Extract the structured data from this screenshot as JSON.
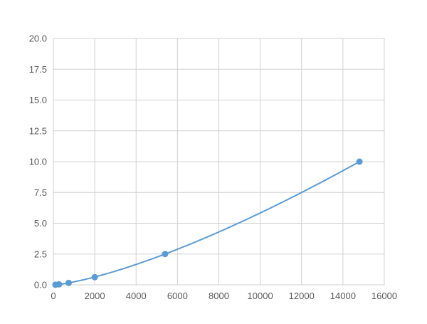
{
  "chart_data": {
    "type": "scatter",
    "title": "",
    "xlabel": "",
    "ylabel": "",
    "xlim": [
      0,
      16000
    ],
    "ylim": [
      0,
      20
    ],
    "x_ticks": [
      "0",
      "2000",
      "4000",
      "6000",
      "8000",
      "10000",
      "12000",
      "14000",
      "16000"
    ],
    "y_ticks": [
      "0.0",
      "2.5",
      "5.0",
      "7.5",
      "10.0",
      "12.5",
      "15.0",
      "17.5",
      "20.0"
    ],
    "grid": true,
    "series": [
      {
        "x": [
          100,
          270,
          740,
          2000,
          5400,
          14800
        ],
        "y": [
          0.01,
          0.04,
          0.156,
          0.625,
          2.5,
          10.0
        ],
        "line": "smooth fitted curve",
        "color": "#5b9bd5"
      }
    ]
  }
}
